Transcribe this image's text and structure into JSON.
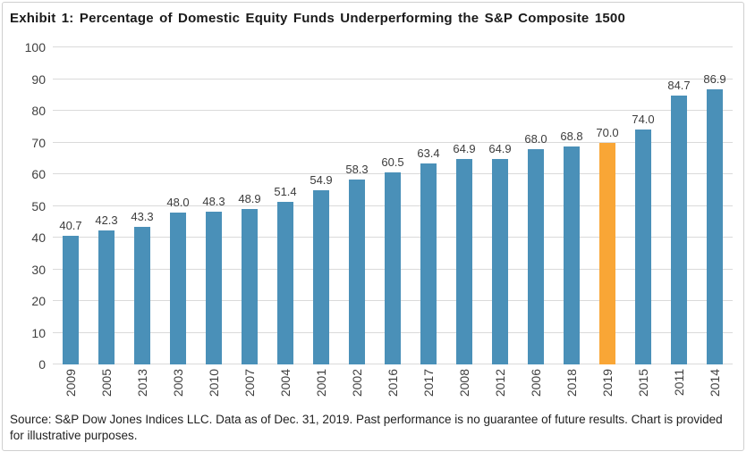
{
  "title": "Exhibit 1: Percentage of Domestic Equity Funds Underperforming the S&P Composite 1500",
  "source": "Source: S&P Dow Jones Indices LLC. Data as of Dec. 31, 2019. Past performance is no guarantee of future results. Chart is provided for illustrative purposes.",
  "colors": {
    "bar": "#4A90B8",
    "highlight": "#F9A636",
    "gridline": "#DADADA",
    "tick_label": "#3F3F3F"
  },
  "chart_data": {
    "type": "bar",
    "categories": [
      "2009",
      "2005",
      "2013",
      "2003",
      "2010",
      "2007",
      "2004",
      "2001",
      "2002",
      "2016",
      "2017",
      "2008",
      "2012",
      "2006",
      "2018",
      "2019",
      "2015",
      "2011",
      "2014"
    ],
    "values": [
      40.7,
      42.3,
      43.3,
      48.0,
      48.3,
      48.9,
      51.4,
      54.9,
      58.3,
      60.5,
      63.4,
      64.9,
      64.9,
      68.0,
      68.8,
      70.0,
      74.0,
      84.7,
      86.9
    ],
    "value_label_decimals": 1,
    "highlight_category": "2019",
    "title": "Exhibit 1: Percentage of Domestic Equity Funds Underperforming the S&P Composite 1500",
    "xlabel": "",
    "ylabel": "",
    "ylim": [
      0,
      100
    ],
    "ytick_step": 10,
    "grid": true,
    "legend": "none"
  }
}
